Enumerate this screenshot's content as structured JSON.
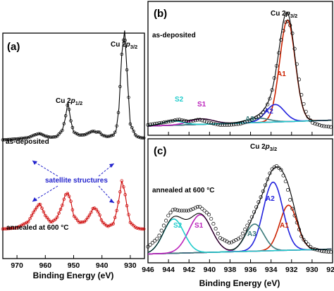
{
  "chart_data": [
    {
      "id": "a",
      "type": "line",
      "panel_label": "(a)",
      "xlabel": "Binding Energy (eV)",
      "xlim": [
        975,
        925
      ],
      "x_reversed": true,
      "x_ticks": [
        970,
        960,
        950,
        940,
        930
      ],
      "y_ticks_shown": false,
      "peak_labels": [
        "Cu 2p1/2",
        "Cu 2p3/2"
      ],
      "peak_label_parts": {
        "p12": {
          "base": "Cu 2",
          "ital": "p",
          "sub": "1/2"
        },
        "p32": {
          "base": "Cu 2",
          "ital": "p",
          "sub": "3/2"
        }
      },
      "annotations": {
        "satellite": "satellite structures"
      },
      "series": [
        {
          "name": "as-deposited",
          "label": "as-deposited",
          "color": "#000000",
          "marker": "open-circle",
          "x": [
            975,
            970,
            966,
            964,
            962,
            960,
            958,
            956,
            954,
            953,
            952,
            951,
            950,
            948,
            946,
            944,
            943,
            942,
            941,
            940,
            938,
            936,
            935,
            934,
            933,
            932,
            931,
            930,
            928,
            926
          ],
          "y": [
            0.3,
            0.33,
            0.37,
            0.45,
            0.5,
            0.42,
            0.38,
            0.4,
            0.6,
            0.95,
            1.5,
            0.9,
            0.55,
            0.45,
            0.46,
            0.55,
            0.58,
            0.54,
            0.56,
            0.45,
            0.4,
            0.45,
            0.6,
            1.3,
            3.0,
            3.75,
            2.2,
            0.8,
            0.42,
            0.36
          ]
        },
        {
          "name": "annealed at 600 °C",
          "label": "annealed at 600 °C",
          "color": "#cc0000",
          "marker": "open-circle",
          "x": [
            975,
            970,
            966,
            964,
            962,
            960,
            958,
            956,
            954,
            953,
            952,
            951,
            950,
            948,
            946,
            944,
            943,
            942,
            941,
            940,
            938,
            936,
            935,
            934,
            933,
            932,
            931,
            930,
            928,
            926
          ],
          "y": [
            0.12,
            0.15,
            0.3,
            0.55,
            0.75,
            0.45,
            0.28,
            0.38,
            0.7,
            0.95,
            1.0,
            0.8,
            0.45,
            0.28,
            0.3,
            0.5,
            0.65,
            0.6,
            0.5,
            0.3,
            0.18,
            0.25,
            0.5,
            0.85,
            1.3,
            1.05,
            0.6,
            0.28,
            0.15,
            0.12
          ]
        }
      ]
    },
    {
      "id": "b",
      "type": "line",
      "panel_label": "(b)",
      "sample_label": "as-deposited",
      "xlim": [
        946,
        928
      ],
      "x_reversed": true,
      "peak_title": {
        "base": "Cu 2",
        "ital": "p",
        "sub": "3/2"
      },
      "components": [
        "A1",
        "A2",
        "A3",
        "S1",
        "S2"
      ],
      "component_colors": {
        "A1": "#cc2200",
        "A2": "#2222dd",
        "A3": "#3a7a7a",
        "S1": "#bb22bb",
        "S2": "#22cccc",
        "background": "#999999",
        "envelope": "#000000"
      },
      "series": [
        {
          "name": "experimental",
          "marker": "open-circle",
          "x": [
            946,
            944,
            943,
            942,
            941,
            940,
            939,
            938,
            937,
            936,
            935,
            934.5,
            934,
            933.5,
            933,
            932.5,
            932,
            931.5,
            931,
            930.5,
            930,
            929,
            928
          ],
          "y": [
            0.03,
            0.06,
            0.08,
            0.06,
            0.08,
            0.05,
            0.03,
            0.03,
            0.04,
            0.07,
            0.12,
            0.18,
            0.3,
            0.55,
            0.82,
            1.0,
            0.92,
            0.6,
            0.28,
            0.12,
            0.05,
            0.02,
            0.01
          ]
        }
      ]
    },
    {
      "id": "c",
      "type": "line",
      "panel_label": "(c)",
      "sample_label": "annealed at 600 °C",
      "xlabel": "Binding Energy (eV)",
      "xlim": [
        946,
        928
      ],
      "x_reversed": true,
      "x_ticks": [
        946,
        944,
        942,
        940,
        938,
        936,
        934,
        932,
        930,
        928
      ],
      "peak_title": {
        "base": "Cu 2",
        "ital": "p",
        "sub": "3/2"
      },
      "components": [
        "A1",
        "A2",
        "A3",
        "S1",
        "S2"
      ],
      "component_colors": {
        "A1": "#cc2200",
        "A2": "#2222dd",
        "A3": "#3a7a7a",
        "S1": "#bb22bb",
        "S2": "#22cccc",
        "background": "#999999",
        "envelope": "#000000"
      },
      "series": [
        {
          "name": "experimental",
          "marker": "open-circle",
          "x": [
            946,
            945,
            944,
            943.5,
            943,
            942,
            941,
            940,
            939,
            938,
            937,
            936,
            935,
            934,
            933.5,
            933,
            932.5,
            932,
            931,
            930,
            929,
            928
          ],
          "y": [
            0.1,
            0.2,
            0.45,
            0.52,
            0.5,
            0.5,
            0.55,
            0.45,
            0.2,
            0.14,
            0.2,
            0.4,
            0.65,
            0.95,
            1.0,
            0.95,
            0.8,
            0.55,
            0.2,
            0.08,
            0.05,
            0.04
          ]
        }
      ]
    }
  ]
}
